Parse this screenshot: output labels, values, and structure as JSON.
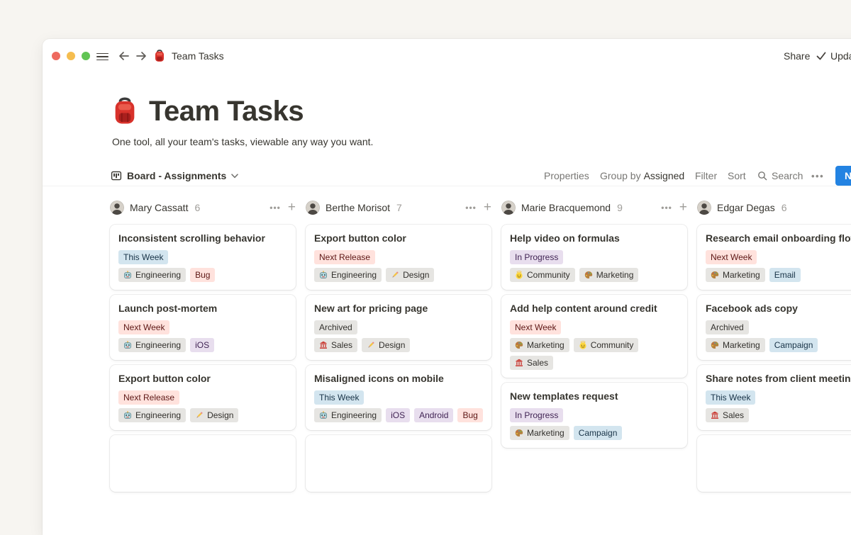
{
  "window": {
    "traffic_lights": [
      "close",
      "minimize",
      "zoom"
    ],
    "title": "Team Tasks",
    "share_label": "Share",
    "updates_label": "Updates"
  },
  "page": {
    "icon": "red-backpack",
    "title": "Team Tasks",
    "subtitle": "One tool, all your team's tasks, viewable any way you want."
  },
  "toolbar": {
    "view_label": "Board - Assignments",
    "properties_label": "Properties",
    "group_by_label": "Group by",
    "group_by_value": "Assigned",
    "filter_label": "Filter",
    "sort_label": "Sort",
    "search_label": "Search",
    "more_label": "•••",
    "new_label": "New"
  },
  "colors": {
    "accent_blue": "#2383e2",
    "page_background": "#f7f5f1",
    "tag_colors": {
      "gray": {
        "bg": "#e6e5e2",
        "text": "#32302c"
      },
      "blue": {
        "bg": "#d3e5ef",
        "text": "#183347"
      },
      "purple": {
        "bg": "#e8deee",
        "text": "#412454"
      },
      "red": {
        "bg": "#ffe2dd",
        "text": "#5d1715"
      }
    }
  },
  "board": {
    "columns": [
      {
        "name": "Mary Cassatt",
        "count": "6",
        "has_partial_card": true,
        "cards": [
          {
            "title": "Inconsistent scrolling behavior",
            "rows": [
              [
                {
                  "label": "This Week",
                  "color": "blue"
                }
              ],
              [
                {
                  "label": "Engineering",
                  "color": "gray",
                  "icon": "robot"
                },
                {
                  "label": "Bug",
                  "color": "red"
                }
              ]
            ]
          },
          {
            "title": "Launch post-mortem",
            "rows": [
              [
                {
                  "label": "Next Week",
                  "color": "red"
                }
              ],
              [
                {
                  "label": "Engineering",
                  "color": "gray",
                  "icon": "robot"
                },
                {
                  "label": "iOS",
                  "color": "purple"
                }
              ]
            ]
          },
          {
            "title": "Export button color",
            "rows": [
              [
                {
                  "label": "Next Release",
                  "color": "red"
                }
              ],
              [
                {
                  "label": "Engineering",
                  "color": "gray",
                  "icon": "robot"
                },
                {
                  "label": "Design",
                  "color": "gray",
                  "icon": "pencil"
                }
              ]
            ]
          }
        ]
      },
      {
        "name": "Berthe Morisot",
        "count": "7",
        "has_partial_card": true,
        "cards": [
          {
            "title": "Export button color",
            "rows": [
              [
                {
                  "label": "Next Release",
                  "color": "red"
                }
              ],
              [
                {
                  "label": "Engineering",
                  "color": "gray",
                  "icon": "robot"
                },
                {
                  "label": "Design",
                  "color": "gray",
                  "icon": "pencil"
                }
              ]
            ]
          },
          {
            "title": "New art for pricing page",
            "rows": [
              [
                {
                  "label": "Archived",
                  "color": "gray"
                }
              ],
              [
                {
                  "label": "Sales",
                  "color": "gray",
                  "icon": "bank"
                },
                {
                  "label": "Design",
                  "color": "gray",
                  "icon": "pencil"
                }
              ]
            ]
          },
          {
            "title": "Misaligned icons on mobile",
            "rows": [
              [
                {
                  "label": "This Week",
                  "color": "blue"
                }
              ],
              [
                {
                  "label": "Engineering",
                  "color": "gray",
                  "icon": "robot"
                },
                {
                  "label": "iOS",
                  "color": "purple"
                },
                {
                  "label": "Android",
                  "color": "purple"
                },
                {
                  "label": "Bug",
                  "color": "red"
                }
              ]
            ]
          }
        ]
      },
      {
        "name": "Marie Bracquemond",
        "count": "9",
        "has_partial_card": false,
        "cards": [
          {
            "title": "Help video on formulas",
            "rows": [
              [
                {
                  "label": "In Progress",
                  "color": "purple"
                }
              ],
              [
                {
                  "label": "Community",
                  "color": "gray",
                  "icon": "halo-face"
                },
                {
                  "label": "Marketing",
                  "color": "gray",
                  "icon": "palette"
                }
              ]
            ]
          },
          {
            "title": "Add help content around credit",
            "rows": [
              [
                {
                  "label": "Next Week",
                  "color": "red"
                }
              ],
              [
                {
                  "label": "Marketing",
                  "color": "gray",
                  "icon": "palette"
                },
                {
                  "label": "Community",
                  "color": "gray",
                  "icon": "halo-face"
                }
              ],
              [
                {
                  "label": "Sales",
                  "color": "gray",
                  "icon": "bank"
                }
              ]
            ]
          },
          {
            "title": "New templates request",
            "rows": [
              [
                {
                  "label": "In Progress",
                  "color": "purple"
                }
              ],
              [
                {
                  "label": "Marketing",
                  "color": "gray",
                  "icon": "palette"
                },
                {
                  "label": "Campaign",
                  "color": "blue"
                }
              ]
            ]
          }
        ]
      },
      {
        "name": "Edgar Degas",
        "count": "6",
        "has_partial_card": true,
        "cards": [
          {
            "title": "Research email onboarding flows",
            "rows": [
              [
                {
                  "label": "Next Week",
                  "color": "red"
                }
              ],
              [
                {
                  "label": "Marketing",
                  "color": "gray",
                  "icon": "palette"
                },
                {
                  "label": "Email",
                  "color": "blue"
                }
              ]
            ]
          },
          {
            "title": "Facebook ads copy",
            "rows": [
              [
                {
                  "label": "Archived",
                  "color": "gray"
                }
              ],
              [
                {
                  "label": "Marketing",
                  "color": "gray",
                  "icon": "palette"
                },
                {
                  "label": "Campaign",
                  "color": "blue"
                }
              ]
            ]
          },
          {
            "title": "Share notes from client meeting",
            "rows": [
              [
                {
                  "label": "This Week",
                  "color": "blue"
                }
              ],
              [
                {
                  "label": "Sales",
                  "color": "gray",
                  "icon": "bank"
                }
              ]
            ]
          }
        ]
      }
    ]
  }
}
